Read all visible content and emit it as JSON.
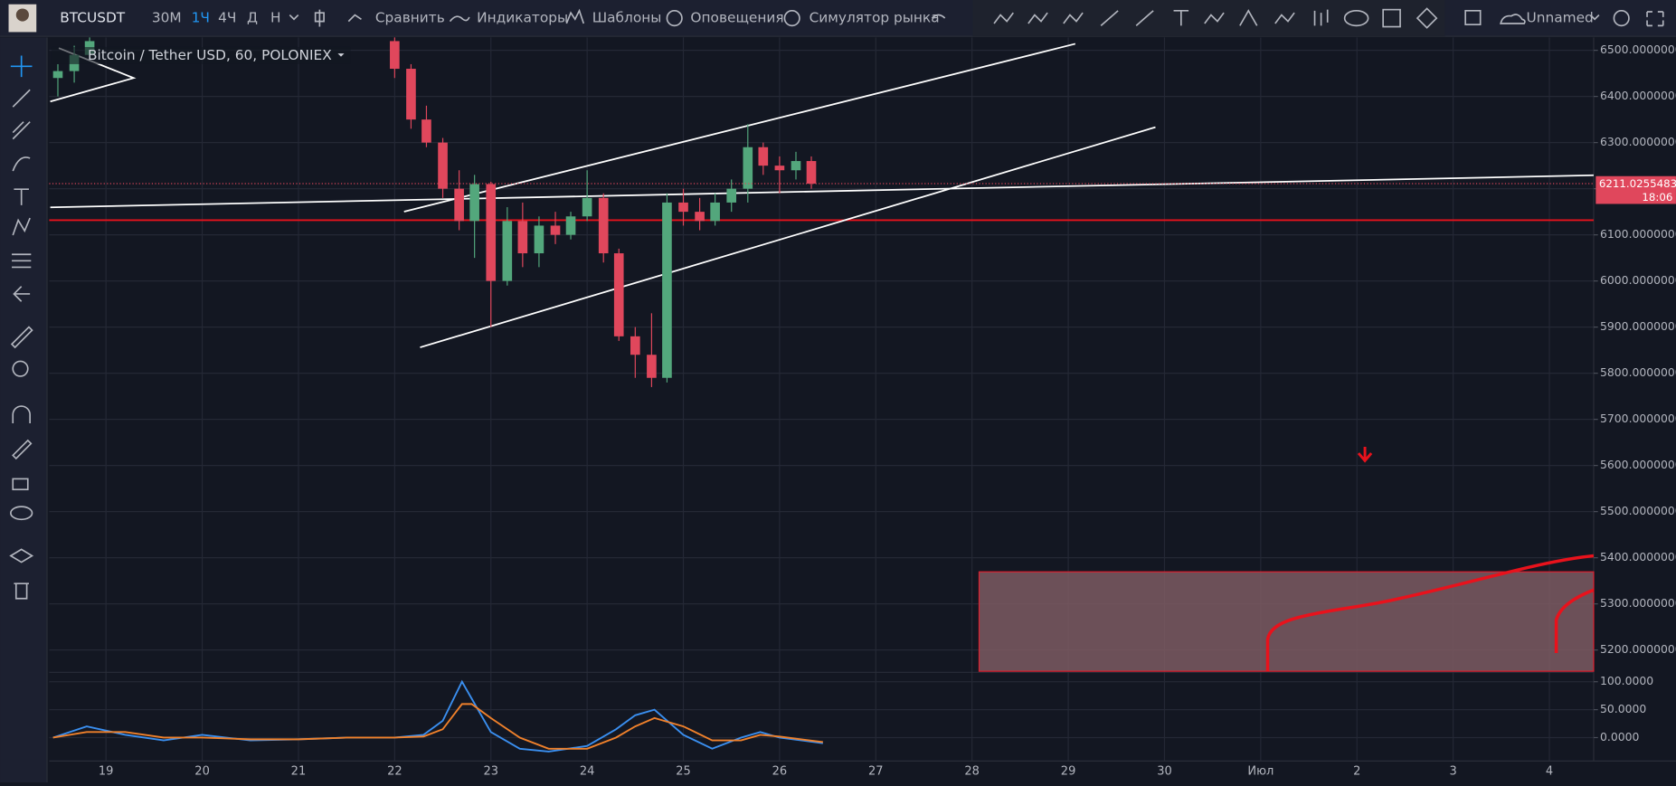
{
  "toolbar": {
    "symbol": "BTCUSDT",
    "intervals": [
      "30М",
      "1Ч",
      "4Ч",
      "Д",
      "Н"
    ],
    "compare": "Сравнить",
    "indicators": "Индикаторы",
    "templates": "Шаблоны",
    "alerts": "Оповещения",
    "replay": "Симулятор рынка",
    "layout": "Unnamed"
  },
  "chart_data": [
    {
      "type": "candlestick",
      "title": "Bitcoin / Tether USD, 60, POLONIEX",
      "x": [
        18.5,
        18.67,
        18.83,
        22.0,
        22.17,
        22.33,
        22.5,
        22.67,
        22.83,
        23.0,
        23.17,
        23.33,
        23.5,
        23.67,
        23.83,
        24.0,
        24.17,
        24.33,
        24.5,
        24.67,
        24.83,
        25.0,
        25.17,
        25.33,
        25.5,
        25.67,
        25.83,
        26.0,
        26.17,
        26.33
      ],
      "open": [
        6440,
        6455,
        6490,
        6520,
        6460,
        6350,
        6300,
        6200,
        6130,
        6210,
        6000,
        6130,
        6060,
        6120,
        6100,
        6140,
        6180,
        6060,
        5880,
        5840,
        5790,
        6170,
        6150,
        6130,
        6170,
        6200,
        6290,
        6250,
        6240,
        6260
      ],
      "high": [
        6470,
        6510,
        6528,
        6528,
        6470,
        6380,
        6310,
        6240,
        6230,
        6215,
        6160,
        6170,
        6140,
        6150,
        6150,
        6240,
        6190,
        6070,
        5900,
        5930,
        6190,
        6200,
        6180,
        6190,
        6220,
        6340,
        6300,
        6270,
        6280,
        6270
      ],
      "low": [
        6400,
        6430,
        6480,
        6440,
        6330,
        6290,
        6180,
        6110,
        6050,
        5900,
        5990,
        6030,
        6030,
        6080,
        6090,
        6130,
        6040,
        5870,
        5790,
        5770,
        5780,
        6120,
        6110,
        6120,
        6150,
        6170,
        6230,
        6190,
        6220,
        6200
      ],
      "close": [
        6455,
        6490,
        6520,
        6460,
        6350,
        6300,
        6200,
        6130,
        6210,
        6000,
        6130,
        6060,
        6120,
        6100,
        6140,
        6180,
        6060,
        5880,
        5840,
        5790,
        6170,
        6150,
        6130,
        6170,
        6200,
        6290,
        6250,
        6240,
        6260,
        6211
      ],
      "up_color": "#53a77c",
      "down_color": "#e0475c",
      "xlim": [
        18.41,
        34.46
      ],
      "xticks": [
        19,
        20,
        21,
        22,
        23,
        24,
        25,
        26,
        27,
        28,
        29,
        30,
        {
          "value": 31,
          "label": "Июл"
        },
        {
          "value": 32,
          "label": "2"
        },
        {
          "value": 33,
          "label": "3"
        },
        {
          "value": 34,
          "label": "4"
        }
      ],
      "ylim": [
        5154,
        6528
      ],
      "yticks": [
        {
          "value": 6500,
          "label": "6500.00000000"
        },
        {
          "value": 6400,
          "label": "6400.00000000"
        },
        {
          "value": 6300,
          "label": "6300.00000000"
        },
        {
          "value": 6200,
          "label": "6200.00000000"
        },
        {
          "value": 6100,
          "label": "6100.00000000"
        },
        {
          "value": 6000,
          "label": "6000.00000000"
        },
        {
          "value": 5900,
          "label": "5900.00000000"
        },
        {
          "value": 5800,
          "label": "5800.00000000"
        },
        {
          "value": 5700,
          "label": "5700.00000000"
        },
        {
          "value": 5600,
          "label": "5600.00000000"
        },
        {
          "value": 5500,
          "label": "5500.00000000"
        },
        {
          "value": 5400,
          "label": "5400.00000000"
        },
        {
          "value": 5300,
          "label": "5300.00000000"
        },
        {
          "value": 5200,
          "label": "5200.00000000"
        }
      ],
      "last_price": 6211.02554835,
      "last_time": "18:06",
      "grid": true
    },
    {
      "type": "line",
      "x": [
        18.45,
        18.8,
        19.2,
        19.6,
        20.0,
        20.5,
        21,
        21.5,
        22,
        22.3,
        22.5,
        22.7,
        22.8,
        23.0,
        23.3,
        23.6,
        24.0,
        24.3,
        24.5,
        24.7,
        25.0,
        25.3,
        25.6,
        25.8,
        26.0,
        26.45
      ],
      "series": [
        {
          "color": "#3a8ff0",
          "values": [
            0,
            20,
            5,
            -5,
            5,
            -5,
            -3,
            0,
            0,
            5,
            30,
            100,
            70,
            10,
            -20,
            -25,
            -15,
            15,
            40,
            50,
            5,
            -20,
            0,
            10,
            0,
            -10
          ]
        },
        {
          "color": "#f0812b",
          "values": [
            0,
            10,
            10,
            0,
            0,
            -3,
            -3,
            0,
            0,
            2,
            15,
            60,
            60,
            35,
            0,
            -20,
            -20,
            0,
            20,
            35,
            20,
            -5,
            -5,
            5,
            2,
            -8
          ]
        }
      ],
      "ylim": [
        -40,
        115
      ],
      "yticks": [
        {
          "value": 100,
          "label": "100.0000"
        },
        {
          "value": 50,
          "label": "50.0000"
        },
        {
          "value": 0,
          "label": "0.0000"
        }
      ]
    }
  ]
}
